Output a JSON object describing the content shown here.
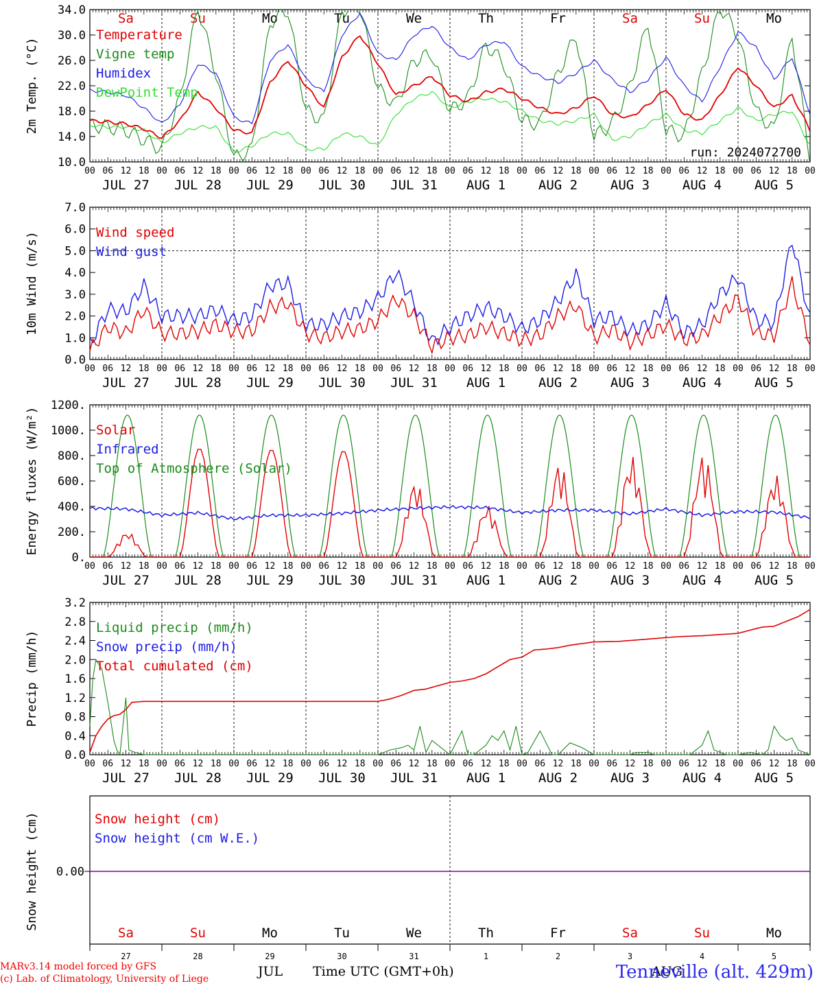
{
  "run_label": "run: 2024072700",
  "footer": {
    "line1": "MARv3.14 model forced by GFS",
    "line2": "(c) Lab. of Climatology, University of Liege"
  },
  "station": "Tenneville (alt. 429m)",
  "x_title": "Time UTC (GMT+0h)",
  "month_jul": "JUL",
  "month_aug": "AUG",
  "hour_ticks": [
    "00",
    "06",
    "12",
    "18"
  ],
  "date_labels": [
    "JUL 27",
    "JUL 28",
    "JUL 29",
    "JUL 30",
    "JUL 31",
    "AUG  1",
    "AUG  2",
    "AUG  3",
    "AUG  4",
    "AUG  5"
  ],
  "weekdays": [
    "Sa",
    "Su",
    "Mo",
    "Tu",
    "We",
    "Th",
    "Fr",
    "Sa",
    "Su",
    "Mo"
  ],
  "day_numbers": [
    "27",
    "28",
    "29",
    "30",
    "31",
    "1",
    "2",
    "3",
    "4",
    "5"
  ],
  "colors": {
    "weekend": "#e00000",
    "weekday": "#000000",
    "red": "#e00000",
    "green": "#1a8a1a",
    "blue": "#1a1ae6",
    "lightgreen": "#33dd33",
    "purple": "#8000a0"
  },
  "chart_data": [
    {
      "type": "line",
      "ylabel": "2m Temp. (°C)",
      "ylim": [
        10,
        34
      ],
      "yticks": [
        "10.0",
        "14.0",
        "18.0",
        "22.0",
        "26.0",
        "30.0",
        "34.0"
      ],
      "x_unit": "hours since 2024-07-27 00 UTC",
      "xlim": [
        0,
        240
      ],
      "series": [
        {
          "name": "Temperature",
          "color": "red",
          "x": [
            0,
            6,
            12,
            18,
            24,
            30,
            36,
            42,
            48,
            54,
            60,
            66,
            72,
            78,
            84,
            90,
            96,
            102,
            108,
            114,
            120,
            126,
            132,
            138,
            144,
            150,
            156,
            162,
            168,
            174,
            180,
            186,
            192,
            198,
            204,
            210,
            216,
            222,
            228,
            234,
            240
          ],
          "y": [
            16.5,
            16.3,
            16.0,
            15.2,
            13.8,
            16.5,
            21.0,
            18.5,
            15.0,
            14.5,
            22.5,
            26.0,
            22.0,
            18.5,
            26.5,
            30.0,
            25.5,
            20.5,
            22.0,
            23.5,
            20.5,
            19.5,
            21.0,
            21.5,
            20.0,
            18.5,
            17.5,
            18.5,
            20.5,
            17.5,
            17.0,
            19.0,
            21.5,
            17.5,
            16.5,
            20.5,
            25.0,
            22.0,
            18.5,
            20.5,
            15.0
          ]
        },
        {
          "name": "Vigne temp",
          "color": "green",
          "x": [
            0,
            6,
            12,
            18,
            24,
            30,
            36,
            42,
            48,
            54,
            60,
            66,
            72,
            78,
            84,
            90,
            96,
            102,
            108,
            114,
            120,
            126,
            132,
            138,
            144,
            150,
            156,
            162,
            168,
            174,
            180,
            186,
            192,
            198,
            204,
            210,
            216,
            222,
            228,
            234,
            240
          ],
          "y": [
            15.8,
            15.5,
            15.0,
            13.5,
            12.0,
            20.0,
            34.5,
            24.0,
            10.5,
            12.0,
            32.0,
            34.0,
            18.0,
            16.5,
            34.0,
            34.5,
            21.5,
            19.0,
            26.0,
            27.0,
            18.0,
            20.0,
            28.5,
            25.5,
            16.5,
            16.0,
            24.0,
            30.0,
            14.0,
            16.0,
            22.0,
            32.0,
            15.0,
            14.0,
            24.0,
            34.5,
            30.0,
            18.0,
            15.0,
            30.0,
            10.5
          ]
        },
        {
          "name": "Humidex",
          "color": "blue",
          "x": [
            0,
            6,
            12,
            18,
            24,
            30,
            36,
            42,
            48,
            54,
            60,
            66,
            72,
            78,
            84,
            90,
            96,
            102,
            108,
            114,
            120,
            126,
            132,
            138,
            144,
            150,
            156,
            162,
            168,
            174,
            180,
            186,
            192,
            198,
            204,
            210,
            216,
            222,
            228,
            234,
            240
          ],
          "y": [
            21.3,
            21.0,
            20.5,
            18.5,
            16.0,
            19.0,
            25.5,
            24.0,
            17.0,
            16.0,
            26.0,
            28.5,
            23.0,
            21.0,
            30.0,
            33.5,
            27.0,
            26.0,
            30.0,
            31.5,
            28.0,
            26.0,
            28.5,
            29.0,
            25.0,
            23.5,
            22.5,
            24.0,
            26.0,
            23.0,
            21.0,
            23.0,
            26.5,
            22.0,
            19.5,
            25.0,
            30.5,
            28.0,
            23.0,
            26.5,
            17.5
          ]
        },
        {
          "name": "DewPoint Temp",
          "color": "lightgreen",
          "x": [
            0,
            6,
            12,
            18,
            24,
            30,
            36,
            42,
            48,
            54,
            60,
            66,
            72,
            78,
            84,
            90,
            96,
            102,
            108,
            114,
            120,
            126,
            132,
            138,
            144,
            150,
            156,
            162,
            168,
            174,
            180,
            186,
            192,
            198,
            204,
            210,
            216,
            222,
            228,
            234,
            240
          ],
          "y": [
            15.8,
            15.5,
            15.5,
            15.0,
            13.0,
            14.5,
            15.5,
            15.5,
            11.5,
            12.5,
            14.5,
            14.5,
            12.0,
            12.0,
            14.5,
            14.0,
            12.5,
            17.5,
            20.0,
            21.0,
            18.5,
            19.5,
            20.0,
            19.5,
            18.0,
            16.5,
            16.0,
            16.5,
            17.5,
            13.5,
            14.0,
            16.0,
            17.5,
            15.0,
            14.5,
            16.5,
            18.5,
            16.5,
            17.5,
            18.0,
            12.5
          ]
        }
      ]
    },
    {
      "type": "line",
      "ylabel": "10m Wind (m/s)",
      "ylim": [
        0,
        7
      ],
      "yticks": [
        "0.0",
        "1.0",
        "2.0",
        "3.0",
        "4.0",
        "5.0",
        "6.0",
        "7.0"
      ],
      "reference_line": 5.0,
      "xlim": [
        0,
        240
      ],
      "series": [
        {
          "name": "Wind speed",
          "color": "red",
          "x": [
            0,
            6,
            12,
            18,
            24,
            30,
            36,
            42,
            48,
            54,
            60,
            66,
            72,
            78,
            84,
            90,
            96,
            102,
            108,
            114,
            120,
            126,
            132,
            138,
            144,
            150,
            156,
            162,
            168,
            174,
            180,
            186,
            192,
            198,
            204,
            210,
            216,
            222,
            228,
            234,
            240
          ],
          "y": [
            0.4,
            1.5,
            1.2,
            2.3,
            1.2,
            1.2,
            1.3,
            1.6,
            1.3,
            1.3,
            2.4,
            2.6,
            1.2,
            1.0,
            1.3,
            1.4,
            1.8,
            2.8,
            2.0,
            0.6,
            1.0,
            1.1,
            1.5,
            1.2,
            0.9,
            1.1,
            2.0,
            2.5,
            1.0,
            1.4,
            0.8,
            1.1,
            1.6,
            0.9,
            1.1,
            2.0,
            2.8,
            1.2,
            1.1,
            3.5,
            0.8
          ]
        },
        {
          "name": "Wind gust",
          "color": "blue",
          "x": [
            0,
            6,
            12,
            18,
            24,
            30,
            36,
            42,
            48,
            54,
            60,
            66,
            72,
            78,
            84,
            90,
            96,
            102,
            108,
            114,
            120,
            126,
            132,
            138,
            144,
            150,
            156,
            162,
            168,
            174,
            180,
            186,
            192,
            198,
            204,
            210,
            216,
            222,
            228,
            234,
            240
          ],
          "y": [
            0.7,
            2.3,
            2.2,
            3.4,
            2.0,
            2.0,
            2.0,
            2.3,
            1.8,
            2.0,
            3.4,
            3.5,
            1.6,
            1.6,
            2.0,
            2.2,
            2.8,
            4.0,
            2.6,
            0.8,
            1.5,
            2.0,
            2.4,
            2.0,
            1.4,
            1.8,
            2.7,
            3.9,
            1.8,
            2.0,
            1.3,
            1.6,
            2.6,
            1.2,
            1.6,
            3.0,
            3.8,
            1.8,
            1.7,
            5.5,
            1.8
          ]
        }
      ]
    },
    {
      "type": "line",
      "ylabel": "Energy fluxes (W/m²)",
      "ylim": [
        0,
        1200
      ],
      "yticks": [
        "0.",
        "200.",
        "400.",
        "600.",
        "800.",
        "1000.",
        "1200."
      ],
      "xlim": [
        0,
        240
      ],
      "toa_peak": 1120,
      "series": [
        {
          "name": "Solar",
          "color": "red",
          "daily_peak": [
            200,
            860,
            850,
            840,
            600,
            410,
            750,
            800,
            820,
            650
          ]
        },
        {
          "name": "Infrared",
          "color": "blue",
          "x": [
            0,
            12,
            24,
            36,
            48,
            60,
            72,
            84,
            96,
            108,
            120,
            132,
            144,
            156,
            168,
            180,
            192,
            204,
            216,
            228,
            240
          ],
          "y": [
            385,
            380,
            330,
            350,
            300,
            330,
            330,
            345,
            370,
            385,
            395,
            390,
            350,
            370,
            370,
            340,
            380,
            330,
            360,
            355,
            310
          ]
        },
        {
          "name": "Top of Atmosphere (Solar)",
          "color": "green"
        }
      ]
    },
    {
      "type": "line",
      "ylabel": "Precip (mm/h)",
      "ylim": [
        0,
        3.2
      ],
      "yticks": [
        "0.0",
        "0.4",
        "0.8",
        "1.2",
        "1.6",
        "2.0",
        "2.4",
        "2.8",
        "3.2"
      ],
      "xlim": [
        0,
        240
      ],
      "series": [
        {
          "name": "Liquid precip (mm/h)",
          "color": "green",
          "x": [
            0,
            1,
            2,
            4,
            6,
            8,
            9,
            10,
            12,
            13,
            15,
            18,
            24,
            96,
            100,
            104,
            106,
            108,
            110,
            112,
            114,
            116,
            118,
            120,
            124,
            126,
            128,
            132,
            134,
            136,
            138,
            140,
            142,
            144,
            146,
            150,
            154,
            156,
            160,
            164,
            168,
            180,
            182,
            186,
            188,
            200,
            204,
            206,
            208,
            212,
            214,
            216,
            220,
            224,
            226,
            228,
            230,
            232,
            234,
            236,
            238,
            240
          ],
          "y": [
            0.6,
            1.6,
            2.0,
            1.8,
            1.1,
            0.3,
            0.1,
            0.0,
            1.2,
            0.1,
            0.05,
            0.0,
            0.0,
            0.0,
            0.1,
            0.15,
            0.2,
            0.1,
            0.6,
            0.05,
            0.3,
            0.2,
            0.1,
            0.0,
            0.5,
            0.0,
            0.0,
            0.2,
            0.4,
            0.3,
            0.5,
            0.1,
            0.6,
            0.0,
            0.05,
            0.5,
            0.0,
            0.0,
            0.25,
            0.15,
            0.0,
            0.0,
            0.05,
            0.05,
            0.0,
            0.0,
            0.2,
            0.5,
            0.1,
            0.0,
            0.0,
            0.0,
            0.05,
            0.0,
            0.1,
            0.6,
            0.4,
            0.3,
            0.35,
            0.1,
            0.05,
            0.0
          ]
        },
        {
          "name": "Snow precip (mm/h)",
          "color": "blue"
        },
        {
          "name": "Total cumulated (cm)",
          "color": "red",
          "x": [
            0,
            2,
            4,
            6,
            8,
            10,
            12,
            14,
            18,
            24,
            48,
            72,
            96,
            100,
            104,
            108,
            112,
            116,
            120,
            124,
            128,
            132,
            136,
            140,
            144,
            148,
            152,
            156,
            160,
            168,
            176,
            180,
            184,
            196,
            204,
            216,
            222,
            224,
            228,
            232,
            236,
            240
          ],
          "y": [
            0.05,
            0.4,
            0.6,
            0.75,
            0.82,
            0.85,
            0.95,
            1.1,
            1.12,
            1.12,
            1.12,
            1.12,
            1.12,
            1.17,
            1.25,
            1.35,
            1.38,
            1.45,
            1.52,
            1.55,
            1.6,
            1.7,
            1.85,
            2.0,
            2.05,
            2.2,
            2.22,
            2.25,
            2.3,
            2.37,
            2.38,
            2.4,
            2.42,
            2.48,
            2.5,
            2.55,
            2.65,
            2.68,
            2.7,
            2.8,
            2.9,
            3.05
          ]
        }
      ]
    },
    {
      "type": "line",
      "ylabel": "Snow height (cm)",
      "yticks": [
        "0.00"
      ],
      "xlim": [
        0,
        240
      ],
      "series": [
        {
          "name": "Snow height (cm)",
          "color": "red",
          "constant": 0.0
        },
        {
          "name": "Snow height (cm W.E.)",
          "color": "blue",
          "constant": 0.0
        }
      ]
    }
  ]
}
